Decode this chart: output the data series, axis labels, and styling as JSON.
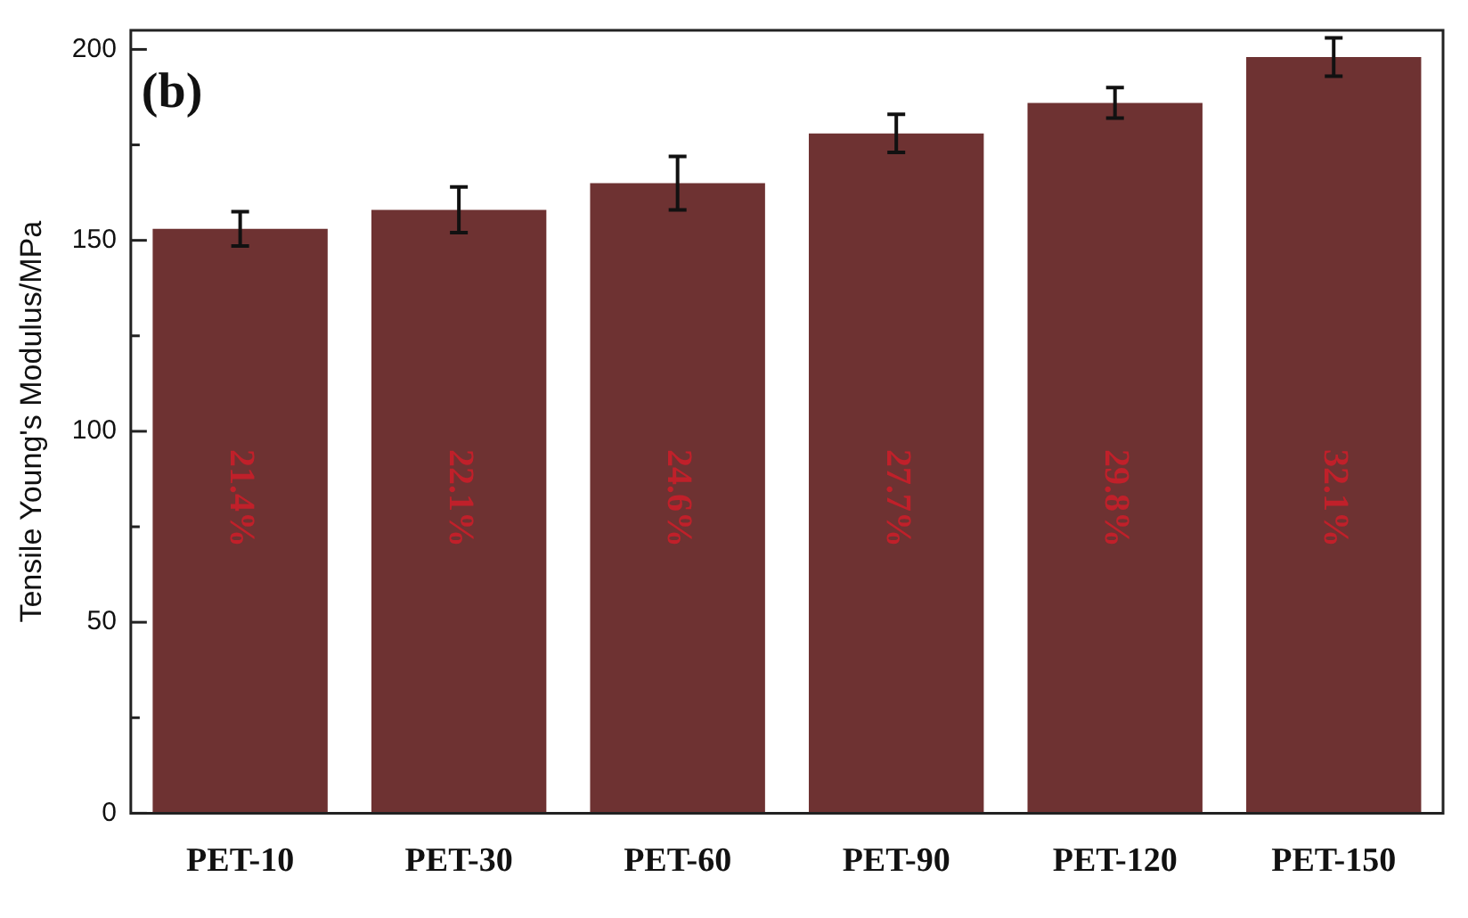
{
  "chart_data": {
    "type": "bar",
    "ylabel": "Tensile Young's Modulus/MPa",
    "categories": [
      "PET-10",
      "PET-30",
      "PET-60",
      "PET-90",
      "PET-120",
      "PET-150"
    ],
    "values": [
      153,
      158,
      165,
      178,
      186,
      198
    ],
    "errors": [
      4.5,
      6,
      7,
      5,
      4,
      5
    ],
    "color": "#6e3232",
    "ylim": [
      0,
      205
    ],
    "yticks": [
      0,
      {
        "value": 25,
        "label": null
      },
      50,
      {
        "value": 75,
        "label": null
      },
      100,
      {
        "value": 125,
        "label": null
      },
      150,
      {
        "value": 175,
        "label": null
      },
      200
    ],
    "annotations": [
      "(b)",
      "21.4%",
      "22.1%",
      "24.6%",
      "27.7%",
      "29.8%",
      "32.1%"
    ],
    "grid": false,
    "legend": false
  }
}
